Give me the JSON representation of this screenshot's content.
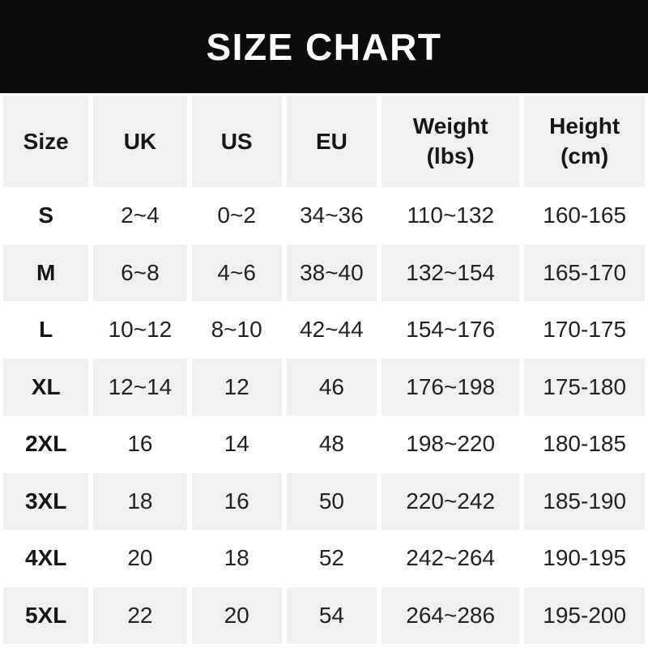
{
  "banner": {
    "title": "SIZE CHART"
  },
  "table": {
    "columns": [
      {
        "label": "Size"
      },
      {
        "label": "UK"
      },
      {
        "label": "US"
      },
      {
        "label": "EU"
      },
      {
        "label": "Weight (lbs)",
        "line1": "Weight",
        "line2": "(lbs)"
      },
      {
        "label": "Height (cm)",
        "line1": "Height",
        "line2": "(cm)"
      }
    ],
    "rows": [
      {
        "size": "S",
        "uk": "2~4",
        "us": "0~2",
        "eu": "34~36",
        "weight": "110~132",
        "height": "160-165"
      },
      {
        "size": "M",
        "uk": "6~8",
        "us": "4~6",
        "eu": "38~40",
        "weight": "132~154",
        "height": "165-170"
      },
      {
        "size": "L",
        "uk": "10~12",
        "us": "8~10",
        "eu": "42~44",
        "weight": "154~176",
        "height": "170-175"
      },
      {
        "size": "XL",
        "uk": "12~14",
        "us": "12",
        "eu": "46",
        "weight": "176~198",
        "height": "175-180"
      },
      {
        "size": "2XL",
        "uk": "16",
        "us": "14",
        "eu": "48",
        "weight": "198~220",
        "height": "180-185"
      },
      {
        "size": "3XL",
        "uk": "18",
        "us": "16",
        "eu": "50",
        "weight": "220~242",
        "height": "185-190"
      },
      {
        "size": "4XL",
        "uk": "20",
        "us": "18",
        "eu": "52",
        "weight": "242~264",
        "height": "190-195"
      },
      {
        "size": "5XL",
        "uk": "22",
        "us": "20",
        "eu": "54",
        "weight": "264~286",
        "height": "195-200"
      }
    ]
  },
  "colors": {
    "banner_bg": "#0c0c0c",
    "title_text": "#ffffff",
    "row_alt_bg": "#f0f0f0",
    "row_bg": "#ffffff",
    "text": "#222222"
  },
  "chart_data": {
    "type": "table",
    "title": "SIZE CHART",
    "columns": [
      "Size",
      "UK",
      "US",
      "EU",
      "Weight (lbs)",
      "Height (cm)"
    ],
    "rows": [
      [
        "S",
        "2~4",
        "0~2",
        "34~36",
        "110~132",
        "160-165"
      ],
      [
        "M",
        "6~8",
        "4~6",
        "38~40",
        "132~154",
        "165-170"
      ],
      [
        "L",
        "10~12",
        "8~10",
        "42~44",
        "154~176",
        "170-175"
      ],
      [
        "XL",
        "12~14",
        "12",
        "46",
        "176~198",
        "175-180"
      ],
      [
        "2XL",
        "16",
        "14",
        "48",
        "198~220",
        "180-185"
      ],
      [
        "3XL",
        "18",
        "16",
        "50",
        "220~242",
        "185-190"
      ],
      [
        "4XL",
        "20",
        "18",
        "52",
        "242~264",
        "190-195"
      ],
      [
        "5XL",
        "22",
        "20",
        "54",
        "264~286",
        "195-200"
      ]
    ],
    "layout": {
      "header_row_shaded": true,
      "alternating_row_colors": [
        "#ffffff",
        "#f0f0f0"
      ],
      "column_separators": "white-gaps",
      "title_banner": "black"
    }
  }
}
